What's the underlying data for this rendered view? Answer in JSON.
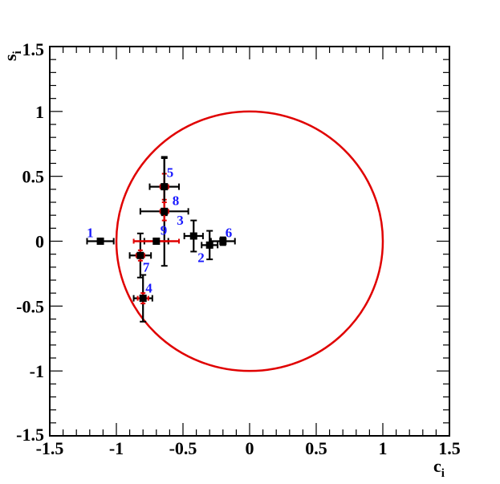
{
  "chart_data": {
    "type": "scatter",
    "xlabel": "c",
    "xlabel_sub": "i",
    "ylabel": "s",
    "ylabel_sub": "i",
    "xlim": [
      -1.5,
      1.5
    ],
    "ylim": [
      -1.5,
      1.5
    ],
    "x_ticks": [
      -1.5,
      -1,
      -0.5,
      0,
      0.5,
      1,
      1.5
    ],
    "x_tick_labels": [
      "-1.5",
      "-1",
      "-0.5",
      "0",
      "0.5",
      "1",
      "1.5"
    ],
    "y_ticks": [
      -1.5,
      -1,
      -0.5,
      0,
      0.5,
      1,
      1.5
    ],
    "y_tick_labels": [
      "-1.5",
      "-1",
      "-0.5",
      "0",
      "0.5",
      "1",
      "1.5"
    ],
    "grid": false,
    "unit_circle": {
      "radius": 1,
      "color": "#e00000"
    },
    "colors": {
      "points": "#000000",
      "stat_error": "#e00000",
      "labels": "#1a1aff",
      "frame": "#000000"
    },
    "points": [
      {
        "label": "1",
        "x": -1.12,
        "y": 0.0,
        "x_err": 0.1,
        "y_err": 0.02,
        "x_stat": 0.0,
        "y_stat": 0.0
      },
      {
        "label": "2",
        "x": -0.3,
        "y": -0.03,
        "x_err": 0.06,
        "y_err": 0.11,
        "x_stat": 0.0,
        "y_stat": 0.0
      },
      {
        "label": "3",
        "x": -0.42,
        "y": 0.04,
        "x_err": 0.07,
        "y_err": 0.12,
        "x_stat": 0.0,
        "y_stat": 0.0
      },
      {
        "label": "4",
        "x": -0.8,
        "y": -0.44,
        "x_err": 0.07,
        "y_err": 0.18,
        "x_stat": 0.04,
        "y_stat": 0.04
      },
      {
        "label": "5",
        "x": -0.64,
        "y": 0.42,
        "x_err": 0.11,
        "y_err": 0.22,
        "x_stat": 0.03,
        "y_stat": 0.1
      },
      {
        "label": "6",
        "x": -0.2,
        "y": 0.0,
        "x_err": 0.09,
        "y_err": 0.03,
        "x_stat": 0.0,
        "y_stat": 0.0
      },
      {
        "label": "7",
        "x": -0.82,
        "y": -0.11,
        "x_err": 0.08,
        "y_err": 0.17,
        "x_stat": 0.03,
        "y_stat": 0.04
      },
      {
        "label": "8",
        "x": -0.64,
        "y": 0.23,
        "x_err": 0.18,
        "y_err": 0.42,
        "x_stat": 0.03,
        "y_stat": 0.07
      },
      {
        "label": "9",
        "x": -0.7,
        "y": 0.0,
        "x_err": 0.09,
        "y_err": 0.02,
        "x_stat": 0.17,
        "y_stat": 0.0
      }
    ]
  }
}
